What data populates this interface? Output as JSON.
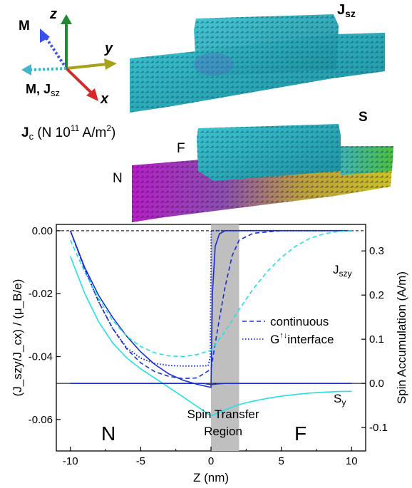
{
  "axes_triad": {
    "z_label": "z",
    "y_label": "y",
    "x_label": "x",
    "m_label": "M",
    "m_js_label": "M, J",
    "m_js_sub": "sz",
    "colors": {
      "z": "#1f8a2e",
      "y": "#a8a21a",
      "x": "#d42a2a",
      "m": "#3a4ee8",
      "mjs": "#3fb7c8"
    }
  },
  "jc_caption": {
    "main": "J",
    "sub": "c",
    "rest": " (N 10",
    "exp": "11",
    "tail": " A/m",
    "exp2": "2",
    "close": ")"
  },
  "block_labels": {
    "jsz_main": "J",
    "jsz_sub": "sz",
    "s": "S",
    "f": "F",
    "n": "N"
  },
  "chart_data": {
    "type": "line",
    "xlabel": "Z (nm)",
    "ylabel_left": "(J_szy/J_cx) / (μ_B/e)",
    "ylabel_right": "Spin Accumulation (A/m)",
    "xlim": [
      -11,
      11
    ],
    "ylim_left": [
      -0.07,
      0.002
    ],
    "ylim_right": [
      -0.153,
      0.36
    ],
    "xticks": [
      -10,
      -5,
      0,
      5,
      10
    ],
    "yticks_left": [
      0.0,
      -0.02,
      -0.04,
      -0.06
    ],
    "yticks_left_labels": [
      "0.00",
      "-0.02",
      "-0.04",
      "-0.06"
    ],
    "yticks_right": [
      0.3,
      0.2,
      0.1,
      0.0,
      -0.1
    ],
    "yticks_right_labels": [
      "0.3",
      "0.2",
      "0.1",
      "0.0",
      "-0.1"
    ],
    "shaded_region": {
      "x": [
        0,
        2
      ],
      "label_line1": "Spin Transfer",
      "label_line2": "Region",
      "color": "#bfbfbf"
    },
    "region_labels": {
      "left": "N",
      "right": "F"
    },
    "legend": {
      "continuous": "continuous",
      "interface_main": "G",
      "interface_sup": "↑↓",
      "interface_rest": "interface"
    },
    "curve_labels": {
      "jszy_main": "J",
      "jszy_sub": "szy",
      "sy_main": "S",
      "sy_sub": "y"
    },
    "colors": {
      "dark": "#1a2fd0",
      "cyan": "#22e0e6"
    },
    "series": [
      {
        "axis": "left",
        "color": "dark",
        "style": "solid",
        "points": [
          [
            -10,
            0
          ],
          [
            -9,
            -0.0115
          ],
          [
            -8,
            -0.0205
          ],
          [
            -7,
            -0.0275
          ],
          [
            -6,
            -0.0335
          ],
          [
            -5,
            -0.0385
          ],
          [
            -4,
            -0.0425
          ],
          [
            -3,
            -0.0455
          ],
          [
            -2,
            -0.0475
          ],
          [
            -1,
            -0.0488
          ],
          [
            -0.3,
            -0.0495
          ],
          [
            0,
            -0.0498
          ],
          [
            0.1,
            -0.02
          ],
          [
            0.3,
            -0.005
          ],
          [
            0.6,
            -0.001
          ],
          [
            1,
            0
          ],
          [
            10,
            0
          ]
        ]
      },
      {
        "axis": "left",
        "color": "dark",
        "style": "dashed",
        "points": [
          [
            -10,
            0
          ],
          [
            -9,
            -0.012
          ],
          [
            -8,
            -0.0225
          ],
          [
            -7,
            -0.031
          ],
          [
            -6,
            -0.0375
          ],
          [
            -5,
            -0.042
          ],
          [
            -4,
            -0.0448
          ],
          [
            -3,
            -0.0463
          ],
          [
            -2,
            -0.047
          ],
          [
            -1,
            -0.0468
          ],
          [
            0,
            -0.044
          ],
          [
            0.3,
            -0.036
          ],
          [
            0.6,
            -0.028
          ],
          [
            1,
            -0.018
          ],
          [
            1.5,
            -0.008
          ],
          [
            2,
            -0.003
          ],
          [
            3,
            -0.0008
          ],
          [
            5,
            0
          ],
          [
            10,
            0
          ]
        ]
      },
      {
        "axis": "left",
        "color": "dark",
        "style": "dotted",
        "points": [
          [
            -10,
            0
          ],
          [
            -9,
            -0.012
          ],
          [
            -8,
            -0.0225
          ],
          [
            -7,
            -0.031
          ],
          [
            -6,
            -0.0372
          ],
          [
            -5,
            -0.0405
          ],
          [
            -4,
            -0.0422
          ],
          [
            -3,
            -0.0428
          ],
          [
            -2,
            -0.043
          ],
          [
            -1,
            -0.043
          ],
          [
            -0.2,
            -0.0429
          ],
          [
            -0.05,
            -0.04
          ],
          [
            0.02,
            0
          ],
          [
            10,
            0
          ]
        ]
      },
      {
        "axis": "left",
        "color": "cyan",
        "style": "dashed",
        "points": [
          [
            -10,
            -0.003
          ],
          [
            -9,
            -0.013
          ],
          [
            -8,
            -0.0215
          ],
          [
            -7,
            -0.0285
          ],
          [
            -6,
            -0.0335
          ],
          [
            -5,
            -0.0368
          ],
          [
            -4,
            -0.0388
          ],
          [
            -3,
            -0.0398
          ],
          [
            -2,
            -0.04
          ],
          [
            -1,
            -0.0394
          ],
          [
            0,
            -0.038
          ],
          [
            1,
            -0.032
          ],
          [
            2,
            -0.025
          ],
          [
            3,
            -0.0185
          ],
          [
            4,
            -0.013
          ],
          [
            5,
            -0.0085
          ],
          [
            6,
            -0.005
          ],
          [
            7,
            -0.0025
          ],
          [
            8,
            -0.001
          ],
          [
            9,
            -0.0003
          ],
          [
            10,
            0
          ]
        ]
      },
      {
        "axis": "right",
        "color": "cyan",
        "style": "solid",
        "points": [
          [
            -10,
            0.288
          ],
          [
            -9,
            0.205
          ],
          [
            -8,
            0.14
          ],
          [
            -7,
            0.092
          ],
          [
            -6,
            0.058
          ],
          [
            -5,
            0.033
          ],
          [
            -4,
            0.012
          ],
          [
            -3,
            -0.009
          ],
          [
            -2,
            -0.03
          ],
          [
            -1,
            -0.052
          ],
          [
            -0.3,
            -0.067
          ],
          [
            0,
            -0.074
          ],
          [
            1,
            -0.06
          ],
          [
            2,
            -0.048
          ],
          [
            3,
            -0.04
          ],
          [
            4,
            -0.034
          ],
          [
            5,
            -0.029
          ],
          [
            6,
            -0.025
          ],
          [
            7,
            -0.022
          ],
          [
            8,
            -0.02
          ],
          [
            9,
            -0.0185
          ],
          [
            10,
            -0.018
          ]
        ]
      },
      {
        "axis": "right",
        "color": "dark",
        "style": "solid",
        "points": [
          [
            -10,
            0
          ],
          [
            -6,
            0
          ],
          [
            -2,
            0
          ],
          [
            -0.5,
            0
          ],
          [
            0,
            -0.003
          ],
          [
            0.5,
            -0.001
          ],
          [
            1,
            0
          ],
          [
            10,
            0
          ]
        ]
      }
    ]
  }
}
